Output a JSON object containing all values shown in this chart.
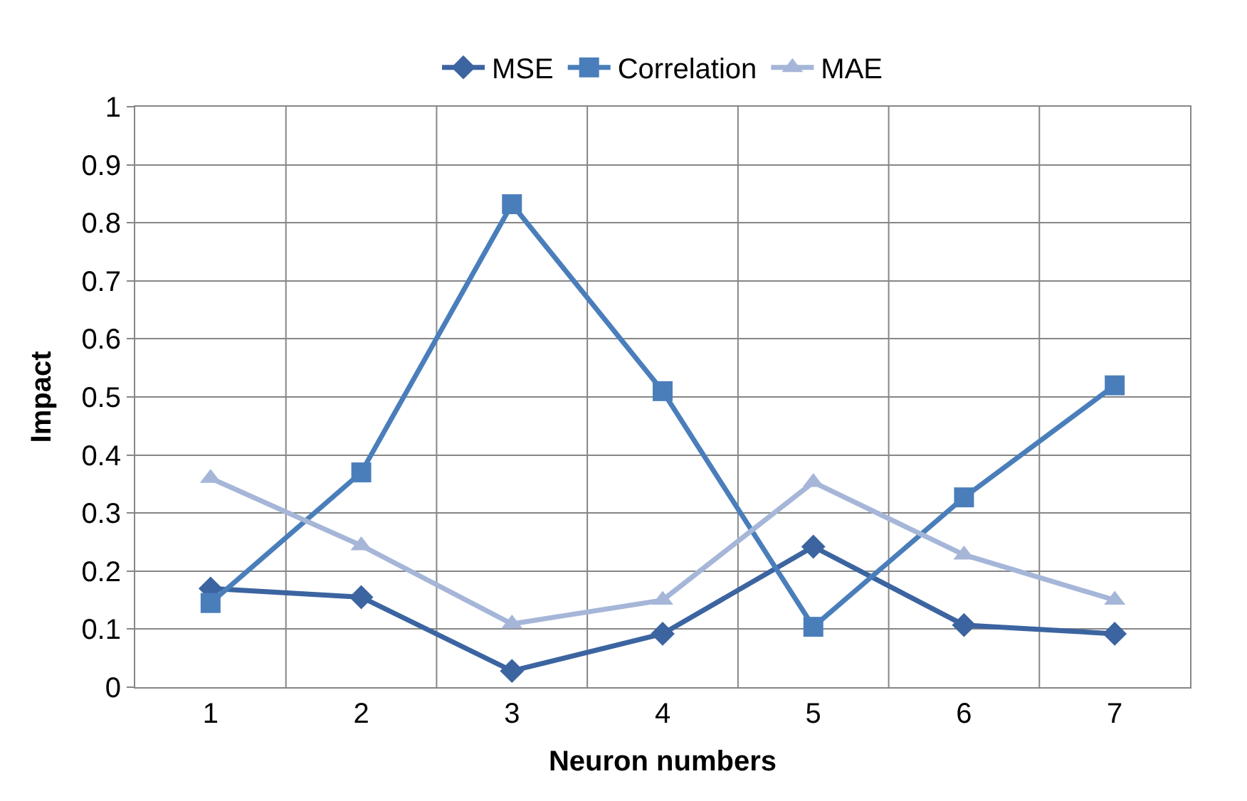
{
  "chart_data": {
    "type": "line",
    "xlabel": "Neuron numbers",
    "ylabel": "Impact",
    "categories": [
      "1",
      "2",
      "3",
      "4",
      "5",
      "6",
      "7"
    ],
    "series": [
      {
        "name": "MSE",
        "color": "#3b64a0",
        "marker": "diamond",
        "values": [
          0.17,
          0.155,
          0.028,
          0.092,
          0.242,
          0.107,
          0.092
        ]
      },
      {
        "name": "Correlation",
        "color": "#4a7ebb",
        "marker": "square",
        "values": [
          0.145,
          0.37,
          0.832,
          0.51,
          0.104,
          0.327,
          0.52
        ]
      },
      {
        "name": "MAE",
        "color": "#a5b6d8",
        "marker": "triangle",
        "values": [
          0.36,
          0.244,
          0.109,
          0.15,
          0.353,
          0.228,
          0.15
        ]
      }
    ],
    "ylim": [
      0,
      1
    ],
    "yticks": [
      0,
      0.1,
      0.2,
      0.3,
      0.4,
      0.5,
      0.6,
      0.7,
      0.8,
      0.9,
      1
    ],
    "grid": true,
    "legend": "top",
    "line_style": "solid"
  }
}
